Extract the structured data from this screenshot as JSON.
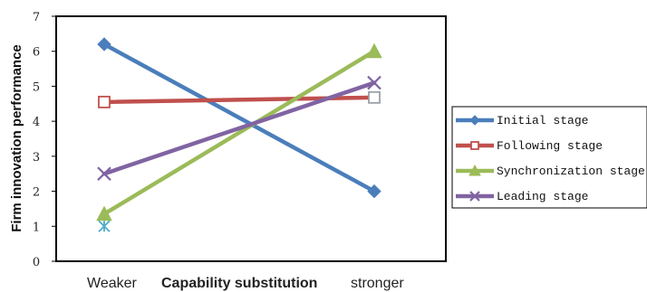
{
  "chart_data": {
    "type": "line",
    "categories": [
      "Weaker",
      "stronger"
    ],
    "ylabel": "Firm innovation performance",
    "xlabel": {
      "left": "Weaker",
      "center": "Capability substitution",
      "right": "stronger"
    },
    "ylim": [
      0,
      7
    ],
    "yticks": [
      "0",
      "1",
      "2",
      "3",
      "4",
      "5",
      "6",
      "7"
    ],
    "grid": false,
    "legend_position": "right",
    "series": [
      {
        "name": "Initial stage",
        "values": [
          6.2,
          2.0
        ],
        "color": "#4a7ebb",
        "marker": "diamond"
      },
      {
        "name": "Following stage",
        "values": [
          4.55,
          4.68
        ],
        "color": "#c0504d",
        "marker": "square-open"
      },
      {
        "name": "Synchronization stage",
        "values": [
          1.35,
          6.0
        ],
        "color": "#9bbb59",
        "marker": "triangle"
      },
      {
        "name": "Leading stage",
        "values": [
          2.5,
          5.1
        ],
        "color": "#8064a2",
        "marker": "x"
      }
    ],
    "extra_markers": [
      {
        "x": "Weaker",
        "y": 1.0,
        "color": "#4bacc6",
        "marker": "asterisk"
      }
    ]
  }
}
